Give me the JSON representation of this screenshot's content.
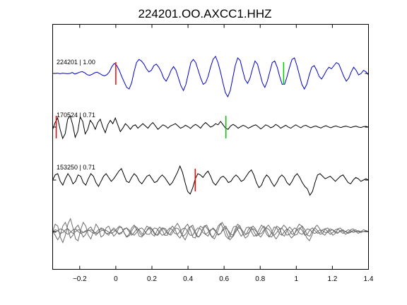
{
  "chart_data": {
    "type": "line",
    "title": "224201.OO.AXCC1.HHZ",
    "xlabel": "",
    "ylabel": "",
    "xlim": [
      -0.35,
      1.4
    ],
    "xticks": [
      -0.2,
      0,
      0.2,
      0.4,
      0.6,
      0.8,
      1,
      1.2,
      1.4
    ],
    "xtick_labels": [
      "−0.2",
      "0",
      "0.2",
      "0.4",
      "0.6",
      "0.8",
      "1",
      "1.2",
      "1.4"
    ],
    "grid": false,
    "series": [
      {
        "label": "224201 | 1.00",
        "color": "#0000cc",
        "marks": [
          {
            "t": 0.0,
            "color": "#ff0000"
          },
          {
            "t": 0.93,
            "color": "#00cc00"
          }
        ],
        "values": [
          0,
          0,
          0.01,
          -0.01,
          0.01,
          0,
          -0.01,
          0,
          0.03,
          -0.02,
          0.01,
          0.04,
          0.06,
          0.02,
          -0.04,
          -0.06,
          -0.03,
          0.02,
          0.04,
          0,
          -0.05,
          -0.08,
          -0.04,
          0.05,
          0.22,
          0.32,
          0.25,
          0.1,
          -0.1,
          -0.28,
          -0.45,
          -0.5,
          -0.3,
          0.05,
          0.35,
          0.45,
          0.4,
          0.3,
          0.15,
          0.05,
          0.1,
          0.25,
          0.3,
          0.2,
          0.05,
          -0.15,
          -0.25,
          -0.1,
          0.1,
          0.22,
          0.1,
          -0.15,
          -0.4,
          -0.55,
          -0.35,
          0,
          0.35,
          0.45,
          0.35,
          0.1,
          -0.15,
          -0.35,
          -0.3,
          -0.1,
          0.2,
          0.45,
          0.55,
          0.35,
          0.05,
          -0.3,
          -0.62,
          -0.75,
          -0.55,
          -0.15,
          0.25,
          0.5,
          0.42,
          0.1,
          -0.2,
          -0.32,
          -0.15,
          0.15,
          0.4,
          0.3,
          0,
          -0.3,
          -0.45,
          -0.25,
          0.05,
          0.35,
          0.4,
          0.2,
          -0.1,
          -0.35,
          -0.35,
          -0.1,
          0.2,
          0.45,
          0.5,
          0.25,
          -0.05,
          -0.35,
          -0.5,
          -0.35,
          -0.05,
          0.2,
          0.25,
          0.1,
          -0.1,
          -0.18,
          -0.05,
          0.1,
          0.2,
          0.15,
          0.25,
          0.35,
          0.3,
          0.1,
          -0.1,
          -0.25,
          -0.15,
          0.05,
          0.2,
          0.1,
          -0.05,
          0,
          0.1,
          0.05,
          -0.05
        ]
      },
      {
        "label": "170524 | 0.71",
        "color": "#000000",
        "marks": [
          {
            "t": -0.33,
            "color": "#ff0000"
          },
          {
            "t": 0.61,
            "color": "#00cc00"
          }
        ],
        "values": [
          -0.1,
          0.2,
          0.4,
          -0.1,
          -0.5,
          -0.3,
          0.35,
          0.5,
          0.1,
          -0.45,
          -0.2,
          0.45,
          0.25,
          -0.3,
          -0.1,
          0.3,
          0.15,
          -0.1,
          0.2,
          0.35,
          0,
          -0.25,
          0.1,
          0.3,
          0.15,
          0.4,
          0.1,
          -0.2,
          -0.05,
          0.15,
          0.05,
          -0.1,
          0.05,
          0.1,
          -0.05,
          0.05,
          0.15,
          0.05,
          -0.05,
          0.1,
          0.2,
          0.05,
          -0.1,
          0,
          0.1,
          0.05,
          -0.05,
          0.05,
          0.1,
          0.15,
          0.05,
          -0.05,
          0,
          0.08,
          0.02,
          -0.06,
          0.05,
          0.12,
          0.05,
          -0.05,
          0.1,
          0.2,
          0.1,
          0,
          0.05,
          0.15,
          0.1,
          0.25,
          0.1,
          -0.05,
          -0.1,
          0.05,
          0.12,
          0.05,
          -0.05,
          0.02,
          0.08,
          0.03,
          -0.05,
          0,
          0.06,
          0.1,
          0.02,
          -0.08,
          0,
          0.1,
          0.05,
          -0.03,
          0.02,
          0.12,
          0.05,
          -0.05,
          0.02,
          0.08,
          0,
          -0.05,
          0.03,
          0.1,
          0.03,
          -0.03,
          0.05,
          0.08,
          0.02,
          -0.03,
          0.02,
          0.05,
          0,
          -0.04,
          0.02,
          0.06,
          0.01,
          -0.03,
          0.02,
          0.05,
          0.01,
          -0.02,
          0.02,
          0.04,
          0.01,
          -0.02,
          0.02,
          0.04,
          0,
          -0.02,
          0.02,
          0.03,
          0
        ]
      },
      {
        "label": "153250 | 0.71",
        "color": "#000000",
        "marks": [
          {
            "t": 0.44,
            "color": "#ff0000"
          }
        ],
        "values": [
          0,
          0.2,
          0.25,
          -0.05,
          -0.2,
          0.05,
          0.25,
          0.1,
          -0.15,
          -0.05,
          0.2,
          0.15,
          -0.1,
          -0.2,
          0.05,
          0.25,
          0.15,
          -0.1,
          -0.25,
          -0.05,
          0.15,
          0.25,
          0.1,
          -0.05,
          0.05,
          0.2,
          0.35,
          0.45,
          0.2,
          -0.05,
          -0.1,
          0.1,
          0.25,
          0.15,
          -0.05,
          -0.15,
          0,
          0.15,
          0.2,
          0.05,
          -0.1,
          -0.05,
          0.1,
          0.2,
          0.1,
          -0.05,
          -0.2,
          -0.1,
          0.1,
          0.3,
          0.55,
          0.3,
          -0.1,
          -0.45,
          -0.55,
          -0.3,
          0.05,
          0.25,
          0.2,
          0.1,
          0.25,
          0.35,
          0.15,
          -0.1,
          -0.2,
          -0.05,
          0.1,
          0.15,
          0.05,
          -0.1,
          -0.05,
          0.1,
          0.2,
          0.1,
          -0.05,
          0,
          0.15,
          0.3,
          0.4,
          0.2,
          -0.1,
          -0.3,
          -0.2,
          0.05,
          0.2,
          0.1,
          -0.1,
          -0.25,
          -0.1,
          0.1,
          0.2,
          0.1,
          -0.1,
          -0.2,
          -0.05,
          0.15,
          0.25,
          0.1,
          -0.1,
          -0.25,
          -0.35,
          -0.6,
          -0.45,
          -0.1,
          0.2,
          0.25,
          0.15,
          0.05,
          0.1,
          0.15,
          0.05,
          -0.05,
          0.05,
          0.15,
          0.2,
          0.05,
          -0.1,
          -0.15,
          0,
          0.1,
          0.05,
          -0.05,
          0,
          0.05,
          0
        ]
      },
      {
        "label": "",
        "color": "#6e6e6e",
        "marks": [],
        "values": [
          0,
          0.4,
          0.3,
          -0.3,
          -0.6,
          -0.2,
          0.4,
          0.7,
          0.2,
          -0.4,
          -0.5,
          0.1,
          0.5,
          0.3,
          -0.2,
          -0.4,
          0,
          0.4,
          0.2,
          -0.3,
          -0.2,
          0.2,
          0.3,
          0,
          -0.25,
          -0.1,
          0.2,
          0.25,
          -0.05,
          -0.3,
          -0.15,
          0.2,
          0.35,
          0.1,
          -0.25,
          -0.3,
          0.05,
          0.3,
          0.2,
          -0.15,
          -0.25,
          0.05,
          0.25,
          0.1,
          -0.2,
          -0.2,
          0.1,
          0.3,
          0.15,
          -0.2,
          -0.35,
          -0.1,
          0.25,
          0.4,
          0.1,
          -0.3,
          -0.35,
          0,
          0.3,
          0.2,
          -0.15,
          -0.25,
          0.05,
          0.2,
          0.05,
          -0.2,
          -0.1,
          0.2,
          0.3,
          0,
          -0.3,
          -0.25,
          0.1,
          0.3,
          0.1,
          -0.2,
          -0.15,
          0.15,
          0.25,
          0,
          -0.25,
          -0.15,
          0.15,
          0.3,
          0.05,
          -0.25,
          -0.3,
          0,
          0.3,
          0.2,
          -0.15,
          -0.25,
          0.05,
          0.25,
          0.1,
          -0.2,
          -0.15,
          0.15,
          0.3,
          0.1,
          -0.2,
          -0.25,
          0.05,
          0.2,
          0.05,
          -0.15,
          -0.1,
          0.15,
          0.2,
          0,
          -0.2,
          -0.1,
          0.15,
          0.2,
          0,
          -0.15,
          -0.05,
          0.1,
          0.15,
          0,
          -0.1,
          0,
          0.1,
          0.05,
          0
        ]
      },
      {
        "label": "",
        "color": "#6e6e6e",
        "marks": [],
        "values": [
          0,
          -0.2,
          -0.45,
          -0.2,
          0.3,
          0.5,
          0.1,
          -0.35,
          -0.2,
          0.2,
          0.35,
          0,
          -0.3,
          -0.15,
          0.15,
          0.25,
          0,
          -0.2,
          -0.05,
          0.2,
          0.15,
          -0.1,
          -0.2,
          0.05,
          0.2,
          0.05,
          -0.15,
          -0.1,
          0.15,
          0.2,
          0,
          -0.2,
          -0.05,
          0.15,
          0.1,
          -0.1,
          -0.15,
          0.05,
          0.2,
          0.1,
          -0.15,
          -0.2,
          0.05,
          0.2,
          0.1,
          -0.1,
          -0.15,
          0.05,
          0.25,
          0.45,
          0.2,
          -0.25,
          -0.45,
          -0.15,
          0.25,
          0.35,
          0,
          -0.3,
          -0.2,
          0.15,
          0.3,
          0.1,
          -0.2,
          -0.3,
          -0.05,
          0.3,
          0.45,
          0.15,
          -0.25,
          -0.4,
          -0.1,
          0.25,
          0.3,
          0,
          -0.25,
          -0.1,
          0.2,
          0.25,
          0,
          -0.25,
          -0.2,
          0.1,
          0.35,
          0.2,
          -0.15,
          -0.3,
          -0.05,
          0.25,
          0.2,
          -0.1,
          -0.2,
          0,
          0.15,
          0.05,
          -0.15,
          -0.1,
          0.1,
          0.2,
          0.05,
          -0.2,
          -0.15,
          0.1,
          0.2,
          0.05,
          -0.1,
          -0.05,
          0.1,
          0.15,
          0,
          -0.15,
          -0.05,
          0.1,
          0.15,
          0,
          -0.1,
          0,
          0.1,
          0.05,
          -0.05,
          0,
          0.05,
          0,
          0,
          0,
          0
        ]
      },
      {
        "label": "",
        "color": "#6e6e6e",
        "marks": [],
        "values": [
          0,
          0.1,
          0.05,
          -0.1,
          -0.05,
          0.1,
          0.15,
          0,
          -0.1,
          0,
          0.1,
          0.05,
          -0.05,
          0,
          0.05,
          0.1,
          0,
          -0.1,
          -0.05,
          0.05,
          0.1,
          0.05,
          -0.05,
          -0.1,
          0,
          0.15,
          0.3,
          0.2,
          -0.1,
          -0.3,
          -0.2,
          0.1,
          0.3,
          0.2,
          -0.1,
          -0.25,
          -0.1,
          0.15,
          0.25,
          0.1,
          -0.15,
          -0.2,
          0,
          0.2,
          0.15,
          -0.1,
          -0.2,
          0,
          0.2,
          0.15,
          -0.1,
          -0.25,
          -0.1,
          0.2,
          0.3,
          0.05,
          -0.25,
          -0.3,
          0,
          0.3,
          0.35,
          0.05,
          -0.3,
          -0.4,
          -0.1,
          0.3,
          0.5,
          0.25,
          -0.15,
          -0.45,
          -0.3,
          0.1,
          0.4,
          0.3,
          -0.1,
          -0.35,
          -0.25,
          0.1,
          0.3,
          0.15,
          -0.15,
          -0.3,
          -0.1,
          0.2,
          0.35,
          0.15,
          -0.2,
          -0.4,
          -0.2,
          0.15,
          0.35,
          0.2,
          -0.15,
          -0.35,
          -0.2,
          0.15,
          0.4,
          0.3,
          -0.05,
          -0.35,
          -0.5,
          -0.2,
          0.2,
          0.35,
          0.15,
          -0.1,
          -0.2,
          0,
          0.15,
          0.1,
          -0.05,
          -0.1,
          0.05,
          0.1,
          0,
          -0.1,
          -0.05,
          0.05,
          0.1,
          0,
          -0.05,
          0,
          0.05,
          0
        ]
      },
      {
        "label": "",
        "color": "#6e6e6e",
        "marks": [],
        "values": [
          0,
          -0.05,
          0.05,
          0.15,
          0.1,
          -0.05,
          -0.15,
          -0.05,
          0.1,
          0.15,
          0,
          -0.1,
          -0.05,
          0.05,
          0.1,
          0,
          -0.1,
          -0.05,
          0.1,
          0.15,
          0.05,
          -0.1,
          -0.1,
          0.05,
          0.1,
          0,
          -0.1,
          -0.05,
          0.1,
          0.2,
          0.1,
          -0.1,
          -0.2,
          -0.05,
          0.15,
          0.2,
          0.05,
          -0.15,
          -0.15,
          0.05,
          0.2,
          0.15,
          -0.05,
          -0.2,
          -0.15,
          0.05,
          0.2,
          0.1,
          -0.1,
          -0.15,
          0,
          0.15,
          0.2,
          0,
          -0.2,
          -0.2,
          0.05,
          0.2,
          0.15,
          -0.05,
          -0.15,
          -0.05,
          0.1,
          0.15,
          0,
          -0.15,
          -0.1,
          0.1,
          0.2,
          0.05,
          -0.15,
          -0.2,
          0,
          0.2,
          0.15,
          -0.05,
          -0.15,
          -0.05,
          0.1,
          0.15,
          0,
          -0.15,
          -0.1,
          0.1,
          0.2,
          0.1,
          -0.1,
          -0.2,
          -0.05,
          0.15,
          0.2,
          0,
          -0.2,
          -0.15,
          0.05,
          0.2,
          0.1,
          -0.1,
          -0.15,
          0,
          0.15,
          0.1,
          -0.05,
          -0.1,
          0,
          0.1,
          0.05,
          -0.05,
          -0.05,
          0.05,
          0.1,
          0,
          -0.05,
          0,
          0.05,
          0,
          -0.05,
          0,
          0.05,
          0,
          0,
          0,
          0,
          0,
          0
        ]
      }
    ]
  }
}
